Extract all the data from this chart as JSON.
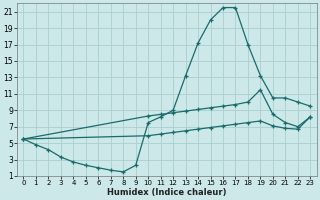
{
  "xlabel": "Humidex (Indice chaleur)",
  "ylabel": "",
  "bg_color": "#cce8e8",
  "grid_color": "#aacfcf",
  "line_color": "#1a6b6b",
  "xlim": [
    -0.5,
    23.5
  ],
  "ylim": [
    1,
    22
  ],
  "xticks": [
    0,
    1,
    2,
    3,
    4,
    5,
    6,
    7,
    8,
    9,
    10,
    11,
    12,
    13,
    14,
    15,
    16,
    17,
    18,
    19,
    20,
    21,
    22,
    23
  ],
  "yticks": [
    1,
    3,
    5,
    7,
    9,
    11,
    13,
    15,
    17,
    19,
    21
  ],
  "line1_x": [
    0,
    1,
    2,
    3,
    4,
    5,
    6,
    7,
    8,
    9,
    10,
    11,
    12,
    13,
    14,
    15,
    16,
    17,
    18,
    19,
    20,
    21,
    22,
    23
  ],
  "line1_y": [
    5.5,
    4.8,
    4.2,
    3.3,
    2.7,
    2.3,
    2.0,
    1.7,
    1.5,
    2.3,
    7.5,
    8.2,
    9.0,
    13.2,
    17.2,
    20.0,
    21.5,
    21.5,
    17.0,
    13.2,
    10.5,
    10.5,
    10.0,
    9.5
  ],
  "line2_x": [
    0,
    10,
    11,
    12,
    13,
    14,
    15,
    16,
    17,
    18,
    19,
    20,
    21,
    22,
    23
  ],
  "line2_y": [
    5.5,
    8.3,
    8.5,
    8.7,
    8.9,
    9.1,
    9.3,
    9.5,
    9.7,
    10.0,
    11.5,
    8.5,
    7.5,
    7.0,
    8.2
  ],
  "line3_x": [
    0,
    10,
    11,
    12,
    13,
    14,
    15,
    16,
    17,
    18,
    19,
    20,
    21,
    22,
    23
  ],
  "line3_y": [
    5.5,
    5.9,
    6.1,
    6.3,
    6.5,
    6.7,
    6.9,
    7.1,
    7.3,
    7.5,
    7.7,
    7.1,
    6.8,
    6.7,
    8.2
  ]
}
